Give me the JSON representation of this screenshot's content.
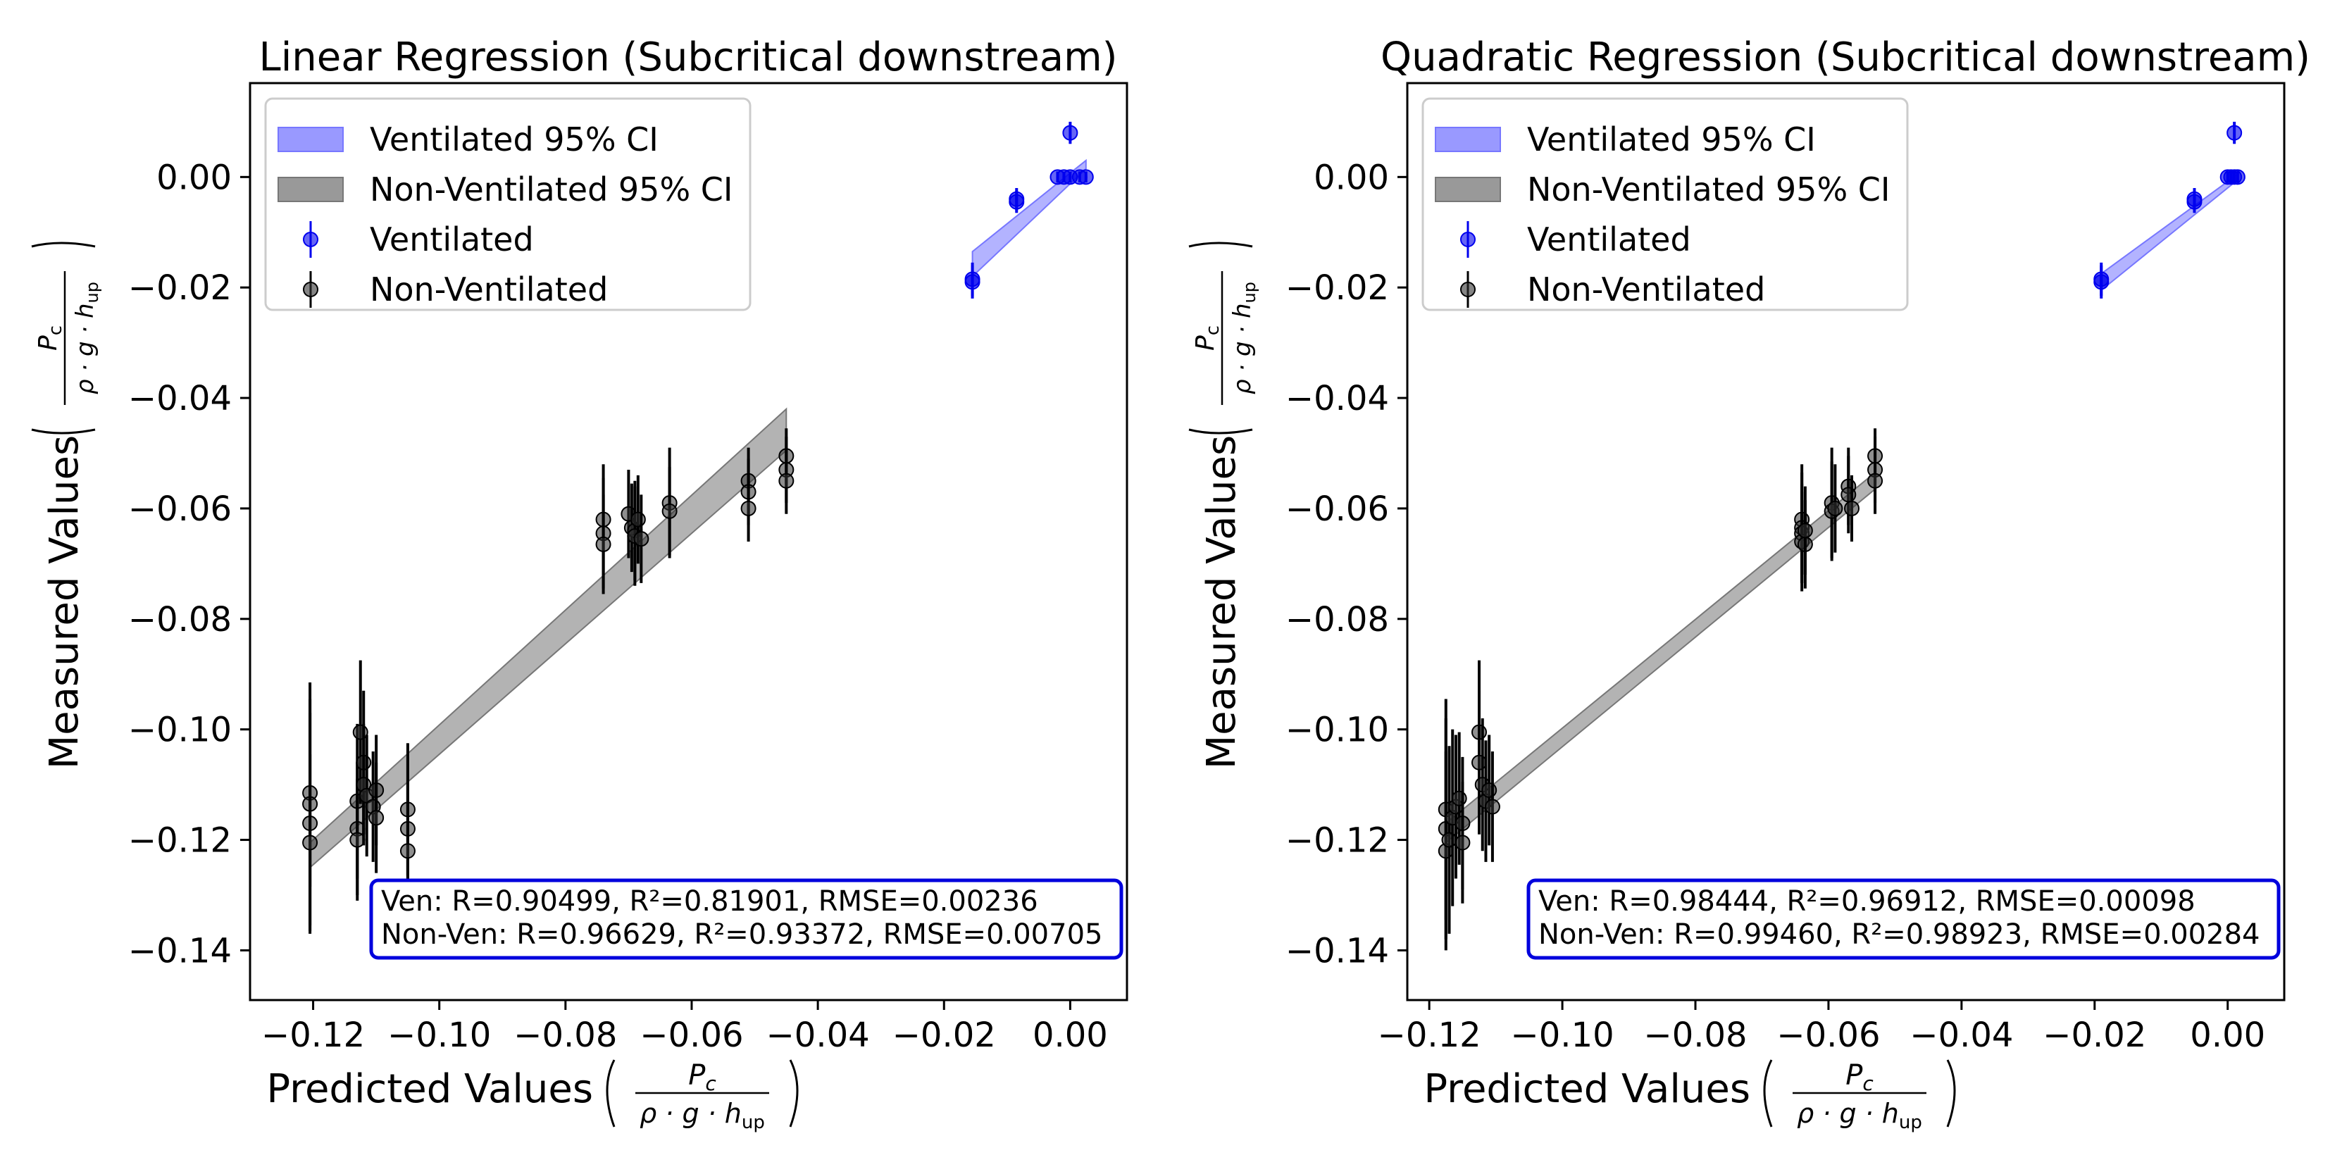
{
  "colors": {
    "ventilated": "#0000ee",
    "ventilated_band": "#9999ff",
    "non_ventilated": "#333333",
    "non_ventilated_band": "#999999",
    "stats_border": "#0000dd"
  },
  "chart_data": [
    {
      "type": "scatter",
      "title": "Linear Regression (Subcritical downstream)",
      "xlabel": "Predicted Values",
      "ylabel": "Measured Values",
      "label_fraction": {
        "numerator": "P",
        "numerator_sub": "c",
        "denominator": "ρ · g · h",
        "denominator_sub": "up"
      },
      "xlim": [
        -0.13,
        0.009
      ],
      "ylim": [
        -0.149,
        0.017
      ],
      "xticks": [
        -0.12,
        -0.1,
        -0.08,
        -0.06,
        -0.04,
        -0.02,
        0.0
      ],
      "xtick_labels": [
        "−0.12",
        "−0.10",
        "−0.08",
        "−0.06",
        "−0.04",
        "−0.02",
        "0.00"
      ],
      "yticks": [
        0.0,
        -0.02,
        -0.04,
        -0.06,
        -0.08,
        -0.1,
        -0.12,
        -0.14
      ],
      "ytick_labels": [
        "0.00",
        "−0.02",
        "−0.04",
        "−0.06",
        "−0.08",
        "−0.10",
        "−0.12",
        "−0.14"
      ],
      "legend": [
        {
          "label": "Ventilated 95% CI",
          "kind": "band",
          "series": "ventilated"
        },
        {
          "label": "Non-Ventilated 95% CI",
          "kind": "band",
          "series": "non_ventilated"
        },
        {
          "label": "Ventilated",
          "kind": "marker",
          "series": "ventilated"
        },
        {
          "label": "Non-Ventilated",
          "kind": "marker",
          "series": "non_ventilated"
        }
      ],
      "stats": [
        "Ven: R=0.90499, R²=0.81901, RMSE=0.00236",
        "Non-Ven: R=0.96629, R²=0.93372, RMSE=0.00705"
      ],
      "bands": {
        "ventilated": {
          "x": [
            -0.0155,
            0.0025
          ],
          "lower": [
            -0.018,
            0.0015
          ],
          "upper": [
            -0.0135,
            0.003
          ]
        },
        "non_ventilated": {
          "x": [
            -0.1205,
            -0.045
          ],
          "lower": [
            -0.125,
            -0.0495
          ],
          "upper": [
            -0.1205,
            -0.042
          ]
        }
      },
      "series": [
        {
          "name": "Ventilated",
          "key": "ventilated",
          "points": [
            {
              "x": -0.0155,
              "y": -0.0185,
              "err": 0.003
            },
            {
              "x": -0.0155,
              "y": -0.019,
              "err": 0.003
            },
            {
              "x": -0.0085,
              "y": -0.004,
              "err": 0.002
            },
            {
              "x": -0.0085,
              "y": -0.0045,
              "err": 0.002
            },
            {
              "x": 0.0,
              "y": 0.008,
              "err": 0.002
            },
            {
              "x": -0.002,
              "y": 0.0,
              "err": 0.001
            },
            {
              "x": -0.001,
              "y": 0.0,
              "err": 0.001
            },
            {
              "x": 0.0,
              "y": 0.0,
              "err": 0.001
            },
            {
              "x": 0.0015,
              "y": 0.0,
              "err": 0.001
            },
            {
              "x": 0.0025,
              "y": 0.0,
              "err": 0.001
            }
          ]
        },
        {
          "name": "Non-Ventilated",
          "key": "non_ventilated",
          "points": [
            {
              "x": -0.1205,
              "y": -0.1115,
              "err": 0.017
            },
            {
              "x": -0.1205,
              "y": -0.1135,
              "err": 0.022
            },
            {
              "x": -0.1205,
              "y": -0.117,
              "err": 0.02
            },
            {
              "x": -0.1205,
              "y": -0.1205,
              "err": 0.016
            },
            {
              "x": -0.113,
              "y": -0.113,
              "err": 0.014
            },
            {
              "x": -0.113,
              "y": -0.118,
              "err": 0.012
            },
            {
              "x": -0.113,
              "y": -0.12,
              "err": 0.011
            },
            {
              "x": -0.1125,
              "y": -0.1005,
              "err": 0.013
            },
            {
              "x": -0.112,
              "y": -0.106,
              "err": 0.013
            },
            {
              "x": -0.112,
              "y": -0.11,
              "err": 0.011
            },
            {
              "x": -0.1115,
              "y": -0.112,
              "err": 0.011
            },
            {
              "x": -0.1105,
              "y": -0.114,
              "err": 0.01
            },
            {
              "x": -0.11,
              "y": -0.111,
              "err": 0.01
            },
            {
              "x": -0.11,
              "y": -0.116,
              "err": 0.01
            },
            {
              "x": -0.105,
              "y": -0.1145,
              "err": 0.012
            },
            {
              "x": -0.105,
              "y": -0.118,
              "err": 0.013
            },
            {
              "x": -0.105,
              "y": -0.122,
              "err": 0.012
            },
            {
              "x": -0.074,
              "y": -0.062,
              "err": 0.01
            },
            {
              "x": -0.074,
              "y": -0.0645,
              "err": 0.01
            },
            {
              "x": -0.074,
              "y": -0.0665,
              "err": 0.009
            },
            {
              "x": -0.07,
              "y": -0.061,
              "err": 0.008
            },
            {
              "x": -0.0695,
              "y": -0.0635,
              "err": 0.008
            },
            {
              "x": -0.069,
              "y": -0.064,
              "err": 0.009
            },
            {
              "x": -0.069,
              "y": -0.065,
              "err": 0.009
            },
            {
              "x": -0.0685,
              "y": -0.062,
              "err": 0.008
            },
            {
              "x": -0.068,
              "y": -0.0655,
              "err": 0.008
            },
            {
              "x": -0.0635,
              "y": -0.059,
              "err": 0.01
            },
            {
              "x": -0.0635,
              "y": -0.0605,
              "err": 0.008
            },
            {
              "x": -0.051,
              "y": -0.055,
              "err": 0.006
            },
            {
              "x": -0.051,
              "y": -0.057,
              "err": 0.006
            },
            {
              "x": -0.051,
              "y": -0.06,
              "err": 0.006
            },
            {
              "x": -0.045,
              "y": -0.0505,
              "err": 0.005
            },
            {
              "x": -0.045,
              "y": -0.053,
              "err": 0.006
            },
            {
              "x": -0.045,
              "y": -0.055,
              "err": 0.006
            }
          ]
        }
      ]
    },
    {
      "type": "scatter",
      "title": "Quadratic Regression (Subcritical downstream)",
      "xlabel": "Predicted Values",
      "ylabel": "Measured Values",
      "label_fraction": {
        "numerator": "P",
        "numerator_sub": "c",
        "denominator": "ρ · g · h",
        "denominator_sub": "up"
      },
      "xlim": [
        -0.1233,
        0.0085
      ],
      "ylim": [
        -0.149,
        0.017
      ],
      "xticks": [
        -0.12,
        -0.1,
        -0.08,
        -0.06,
        -0.04,
        -0.02,
        0.0
      ],
      "xtick_labels": [
        "−0.12",
        "−0.10",
        "−0.08",
        "−0.06",
        "−0.04",
        "−0.02",
        "0.00"
      ],
      "yticks": [
        0.0,
        -0.02,
        -0.04,
        -0.06,
        -0.08,
        -0.1,
        -0.12,
        -0.14
      ],
      "ytick_labels": [
        "0.00",
        "−0.02",
        "−0.04",
        "−0.06",
        "−0.08",
        "−0.10",
        "−0.12",
        "−0.14"
      ],
      "legend": [
        {
          "label": "Ventilated 95% CI",
          "kind": "band",
          "series": "ventilated"
        },
        {
          "label": "Non-Ventilated 95% CI",
          "kind": "band",
          "series": "non_ventilated"
        },
        {
          "label": "Ventilated",
          "kind": "marker",
          "series": "ventilated"
        },
        {
          "label": "Non-Ventilated",
          "kind": "marker",
          "series": "non_ventilated"
        }
      ],
      "stats": [
        "Ven: R=0.98444, R²=0.96912, RMSE=0.00098",
        "Non-Ven: R=0.99460, R²=0.98923, RMSE=0.00284"
      ],
      "bands": {
        "ventilated": {
          "x": [
            -0.019,
            0.0015
          ],
          "lower": [
            -0.0205,
            -0.0005
          ],
          "upper": [
            -0.0175,
            0.0005
          ]
        },
        "non_ventilated": {
          "x": [
            -0.1175,
            -0.053
          ],
          "lower": [
            -0.1205,
            -0.0565
          ],
          "upper": [
            -0.117,
            -0.0535
          ]
        }
      },
      "series": [
        {
          "name": "Ventilated",
          "key": "ventilated",
          "points": [
            {
              "x": -0.019,
              "y": -0.0185,
              "err": 0.003
            },
            {
              "x": -0.019,
              "y": -0.019,
              "err": 0.003
            },
            {
              "x": -0.005,
              "y": -0.004,
              "err": 0.002
            },
            {
              "x": -0.005,
              "y": -0.0045,
              "err": 0.002
            },
            {
              "x": 0.001,
              "y": 0.008,
              "err": 0.002
            },
            {
              "x": 0.0,
              "y": 0.0,
              "err": 0.001
            },
            {
              "x": 0.0005,
              "y": 0.0,
              "err": 0.001
            },
            {
              "x": 0.001,
              "y": 0.0,
              "err": 0.001
            },
            {
              "x": 0.0015,
              "y": 0.0,
              "err": 0.001
            }
          ]
        },
        {
          "name": "Non-Ventilated",
          "key": "non_ventilated",
          "points": [
            {
              "x": -0.1175,
              "y": -0.1145,
              "err": 0.02
            },
            {
              "x": -0.1175,
              "y": -0.118,
              "err": 0.02
            },
            {
              "x": -0.1175,
              "y": -0.122,
              "err": 0.018
            },
            {
              "x": -0.117,
              "y": -0.12,
              "err": 0.017
            },
            {
              "x": -0.1165,
              "y": -0.116,
              "err": 0.016
            },
            {
              "x": -0.116,
              "y": -0.114,
              "err": 0.013
            },
            {
              "x": -0.1155,
              "y": -0.1125,
              "err": 0.012
            },
            {
              "x": -0.115,
              "y": -0.117,
              "err": 0.012
            },
            {
              "x": -0.115,
              "y": -0.1205,
              "err": 0.011
            },
            {
              "x": -0.1125,
              "y": -0.1005,
              "err": 0.013
            },
            {
              "x": -0.1125,
              "y": -0.106,
              "err": 0.013
            },
            {
              "x": -0.112,
              "y": -0.11,
              "err": 0.012
            },
            {
              "x": -0.1115,
              "y": -0.113,
              "err": 0.011
            },
            {
              "x": -0.111,
              "y": -0.111,
              "err": 0.01
            },
            {
              "x": -0.1105,
              "y": -0.114,
              "err": 0.01
            },
            {
              "x": -0.064,
              "y": -0.062,
              "err": 0.01
            },
            {
              "x": -0.064,
              "y": -0.0635,
              "err": 0.01
            },
            {
              "x": -0.064,
              "y": -0.0645,
              "err": 0.009
            },
            {
              "x": -0.064,
              "y": -0.066,
              "err": 0.009
            },
            {
              "x": -0.0635,
              "y": -0.0665,
              "err": 0.008
            },
            {
              "x": -0.0635,
              "y": -0.064,
              "err": 0.008
            },
            {
              "x": -0.0595,
              "y": -0.059,
              "err": 0.01
            },
            {
              "x": -0.0595,
              "y": -0.0605,
              "err": 0.009
            },
            {
              "x": -0.059,
              "y": -0.06,
              "err": 0.008
            },
            {
              "x": -0.057,
              "y": -0.056,
              "err": 0.007
            },
            {
              "x": -0.057,
              "y": -0.0575,
              "err": 0.007
            },
            {
              "x": -0.0565,
              "y": -0.06,
              "err": 0.006
            },
            {
              "x": -0.053,
              "y": -0.0505,
              "err": 0.005
            },
            {
              "x": -0.053,
              "y": -0.053,
              "err": 0.006
            },
            {
              "x": -0.053,
              "y": -0.055,
              "err": 0.006
            }
          ]
        }
      ]
    }
  ]
}
